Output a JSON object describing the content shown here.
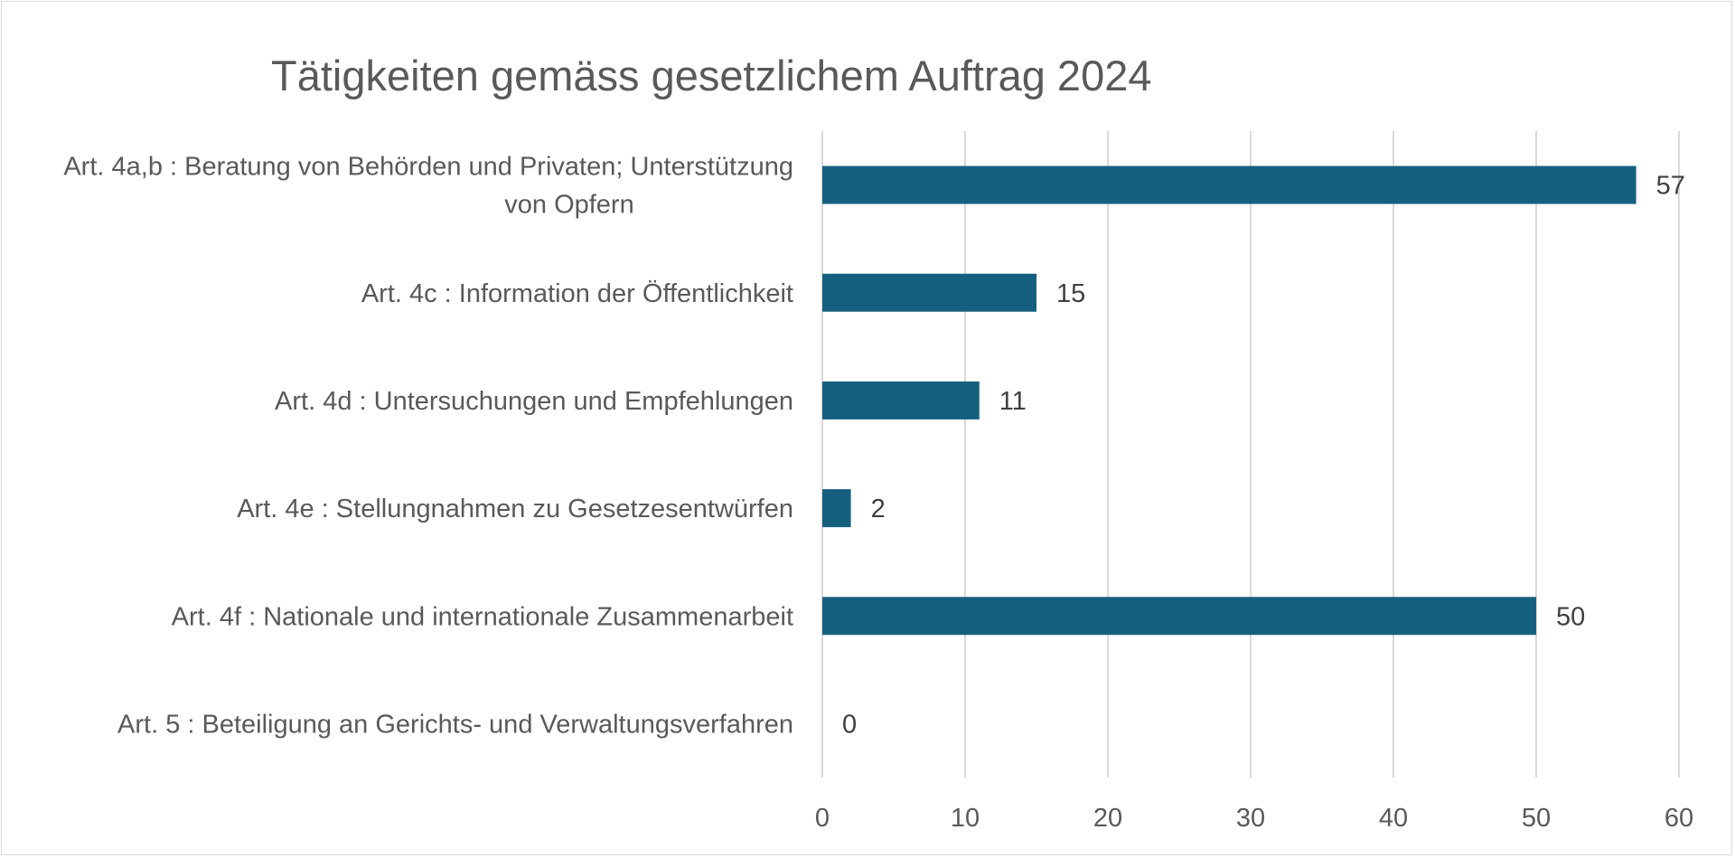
{
  "chart_data": {
    "type": "bar",
    "orientation": "horizontal",
    "title": "Tätigkeiten gemäss gesetzlichem Auftrag 2024",
    "categories": [
      [
        "Art. 4a,b : Beratung von Behörden und Privaten; Unterstützung",
        "von Opfern"
      ],
      [
        "Art. 4c : Information der Öffentlichkeit"
      ],
      [
        "Art. 4d : Untersuchungen und Empfehlungen"
      ],
      [
        "Art. 4e : Stellungnahmen zu Gesetzesentwürfen"
      ],
      [
        "Art. 4f : Nationale und internationale Zusammenarbeit"
      ],
      [
        "Art. 5 : Beteiligung an Gerichts- und Verwaltungsverfahren"
      ]
    ],
    "values": [
      57,
      15,
      11,
      2,
      50,
      0
    ],
    "xlim": [
      0,
      60
    ],
    "xticks": [
      0,
      10,
      20,
      30,
      40,
      50,
      60
    ],
    "grid": "vertical",
    "data_labels": true,
    "legend": "none",
    "bar_color": "#16607f",
    "gridline_color": "#d9d9d9"
  }
}
